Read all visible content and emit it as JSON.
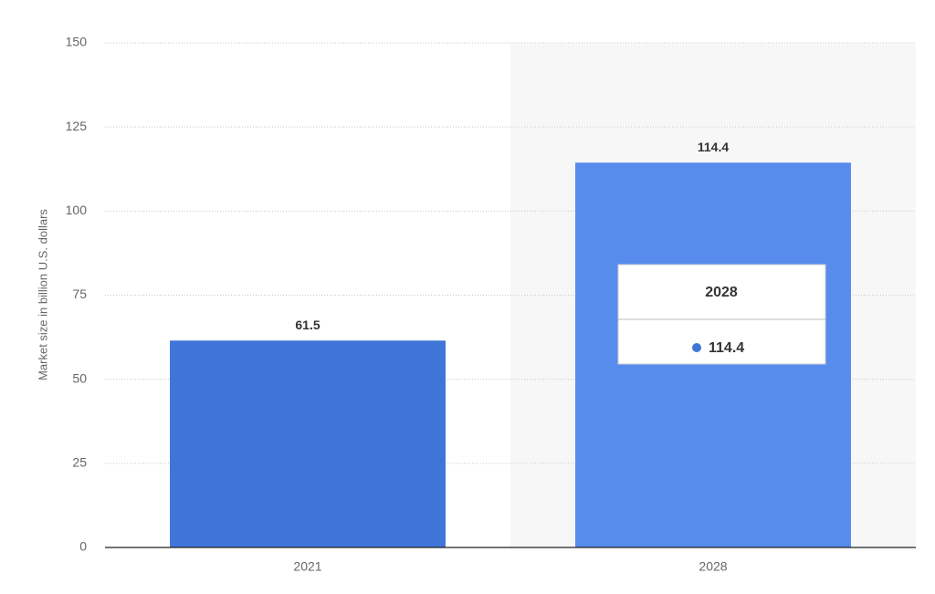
{
  "chart_data": {
    "type": "bar",
    "y_label": "Market size in billion U.S. dollars",
    "categories": [
      "2021",
      "2028"
    ],
    "values": [
      61.5,
      114.4
    ],
    "colors": [
      "#3f74d8",
      "#578ced"
    ],
    "ylim": [
      0,
      150
    ],
    "yticks": [
      0,
      25,
      50,
      75,
      100,
      125,
      150
    ],
    "grid": true
  }
}
